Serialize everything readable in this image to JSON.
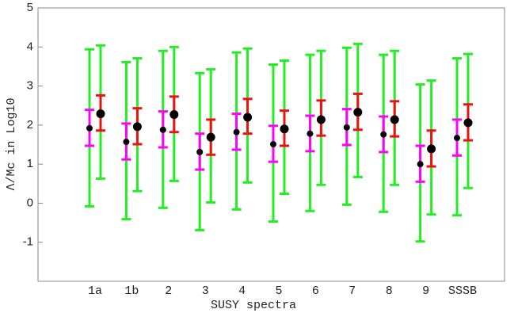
{
  "chart_data": {
    "type": "errorbar",
    "xlabel": "SUSY spectra",
    "ylabel": "Λ/Mc in Log10",
    "categories": [
      "1a",
      "1b",
      "2",
      "3",
      "4",
      "5",
      "6",
      "7",
      "8",
      "9",
      "SSSB"
    ],
    "ylim": [
      -2,
      5
    ],
    "yticks": [
      -1,
      0,
      1,
      2,
      3,
      4,
      5
    ],
    "series": [
      {
        "color": "#000000",
        "inner_color": "#ff00ff",
        "outer_color": "#22ee22",
        "values": [
          1.92,
          1.57,
          1.88,
          1.31,
          1.82,
          1.51,
          1.78,
          1.94,
          1.76,
          1.0,
          1.67
        ],
        "inner_low": [
          1.47,
          1.12,
          1.43,
          0.86,
          1.37,
          1.06,
          1.33,
          1.49,
          1.31,
          0.55,
          1.22
        ],
        "inner_high": [
          2.39,
          2.04,
          2.35,
          1.78,
          2.29,
          1.98,
          2.24,
          2.41,
          2.22,
          1.47,
          2.14
        ],
        "outer_low": [
          -0.08,
          -0.41,
          -0.12,
          -0.69,
          -0.16,
          -0.47,
          -0.2,
          -0.04,
          -0.22,
          -0.98,
          -0.31
        ],
        "outer_high": [
          3.94,
          3.61,
          3.9,
          3.33,
          3.86,
          3.55,
          3.8,
          3.98,
          3.8,
          3.04,
          3.71
        ]
      },
      {
        "color": "#000000",
        "inner_color": "#ee1111",
        "outer_color": "#22ee22",
        "values": [
          2.29,
          1.96,
          2.27,
          1.69,
          2.2,
          1.9,
          2.14,
          2.33,
          2.14,
          1.39,
          2.06
        ],
        "inner_low": [
          1.86,
          1.51,
          1.82,
          1.24,
          1.78,
          1.47,
          1.73,
          1.88,
          1.71,
          0.94,
          1.61
        ],
        "inner_high": [
          2.76,
          2.43,
          2.73,
          2.14,
          2.67,
          2.37,
          2.63,
          2.8,
          2.61,
          1.86,
          2.53
        ],
        "outer_low": [
          0.63,
          0.31,
          0.57,
          0.02,
          0.53,
          0.24,
          0.47,
          0.67,
          0.47,
          -0.29,
          0.39
        ],
        "outer_high": [
          4.04,
          3.71,
          4.0,
          3.43,
          3.96,
          3.65,
          3.9,
          4.08,
          3.9,
          3.14,
          3.82
        ]
      }
    ]
  }
}
